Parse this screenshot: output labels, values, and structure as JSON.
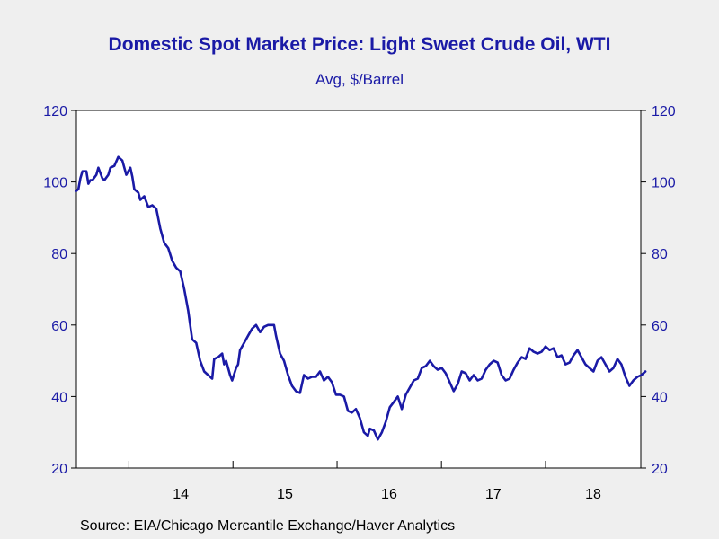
{
  "header": {
    "title": "Domestic Spot Market Price: Light Sweet Crude Oil, WTI",
    "subtitle": "Avg, $/Barrel"
  },
  "footer": {
    "source": "Source:  EIA/Chicago Mercantile Exchange/Haver Analytics"
  },
  "colors": {
    "line": "#1a1aa6",
    "axis": "#000000",
    "background": "#efefef",
    "plot": "#ffffff"
  },
  "chart_data": {
    "type": "line",
    "title": "Domestic Spot Market Price: Light Sweet Crude Oil, WTI",
    "subtitle": "Avg, $/Barrel",
    "xlabel": "",
    "ylabel": "",
    "xlim": [
      "2013-07",
      "2018-12"
    ],
    "ylim": [
      20,
      120
    ],
    "yticks": [
      20,
      40,
      60,
      80,
      100,
      120
    ],
    "xticks": [
      "14",
      "15",
      "16",
      "17",
      "18"
    ],
    "grid": false,
    "legend": "none",
    "series": [
      {
        "values": [
          [
            "2013-07-01",
            97.5
          ],
          [
            "2013-07-08",
            98.0
          ],
          [
            "2013-07-15",
            101.0
          ],
          [
            "2013-07-22",
            103.0
          ],
          [
            "2013-08-05",
            103.0
          ],
          [
            "2013-08-12",
            99.5
          ],
          [
            "2013-08-19",
            100.5
          ],
          [
            "2013-08-26",
            100.5
          ],
          [
            "2013-09-09",
            102.0
          ],
          [
            "2013-09-16",
            104.0
          ],
          [
            "2013-09-30",
            101.0
          ],
          [
            "2013-10-07",
            100.5
          ],
          [
            "2013-10-21",
            102.0
          ],
          [
            "2013-10-28",
            104.0
          ],
          [
            "2013-11-11",
            104.5
          ],
          [
            "2013-11-25",
            107.0
          ],
          [
            "2013-12-09",
            106.0
          ],
          [
            "2013-12-23",
            102.0
          ],
          [
            "2014-01-06",
            104.0
          ],
          [
            "2014-01-13",
            101.5
          ],
          [
            "2014-01-20",
            98.0
          ],
          [
            "2014-02-03",
            97.0
          ],
          [
            "2014-02-10",
            95.0
          ],
          [
            "2014-02-24",
            96.0
          ],
          [
            "2014-03-10",
            93.0
          ],
          [
            "2014-03-24",
            93.5
          ],
          [
            "2014-04-07",
            92.5
          ],
          [
            "2014-04-21",
            87.0
          ],
          [
            "2014-05-05",
            83.0
          ],
          [
            "2014-05-19",
            81.5
          ],
          [
            "2014-06-02",
            78.0
          ],
          [
            "2014-06-16",
            76.0
          ],
          [
            "2014-06-30",
            75.0
          ],
          [
            "2014-07-14",
            70.0
          ],
          [
            "2014-07-28",
            64.0
          ],
          [
            "2014-08-11",
            56.0
          ],
          [
            "2014-08-25",
            55.0
          ],
          [
            "2014-09-08",
            50.0
          ],
          [
            "2014-09-22",
            47.0
          ],
          [
            "2014-10-06",
            46.0
          ],
          [
            "2014-10-20",
            45.0
          ],
          [
            "2014-10-27",
            50.5
          ],
          [
            "2014-11-10",
            51.0
          ],
          [
            "2014-11-24",
            52.0
          ],
          [
            "2014-12-01",
            49.0
          ],
          [
            "2014-12-08",
            50.0
          ],
          [
            "2014-12-22",
            46.0
          ],
          [
            "2014-12-29",
            44.5
          ],
          [
            "2015-01-12",
            48.0
          ],
          [
            "2015-01-19",
            49.0
          ],
          [
            "2015-01-26",
            53.0
          ],
          [
            "2015-02-09",
            55.0
          ],
          [
            "2015-02-23",
            57.0
          ],
          [
            "2015-03-09",
            59.0
          ],
          [
            "2015-03-23",
            60.0
          ],
          [
            "2015-04-06",
            58.0
          ],
          [
            "2015-04-20",
            59.5
          ],
          [
            "2015-05-04",
            60.0
          ],
          [
            "2015-05-25",
            60.0
          ],
          [
            "2015-06-01",
            57.0
          ],
          [
            "2015-06-15",
            52.0
          ],
          [
            "2015-06-29",
            50.0
          ],
          [
            "2015-07-13",
            46.0
          ],
          [
            "2015-07-27",
            43.0
          ],
          [
            "2015-08-10",
            41.5
          ],
          [
            "2015-08-24",
            41.0
          ],
          [
            "2015-09-07",
            46.0
          ],
          [
            "2015-09-21",
            45.0
          ],
          [
            "2015-10-05",
            45.5
          ],
          [
            "2015-10-19",
            45.5
          ],
          [
            "2015-11-02",
            47.0
          ],
          [
            "2015-11-16",
            44.5
          ],
          [
            "2015-11-30",
            45.5
          ],
          [
            "2015-12-14",
            44.0
          ],
          [
            "2015-12-28",
            40.5
          ],
          [
            "2016-01-11",
            40.5
          ],
          [
            "2016-01-25",
            40.0
          ],
          [
            "2016-02-08",
            36.0
          ],
          [
            "2016-02-22",
            35.5
          ],
          [
            "2016-03-07",
            36.5
          ],
          [
            "2016-03-21",
            34.0
          ],
          [
            "2016-04-04",
            30.0
          ],
          [
            "2016-04-18",
            29.0
          ],
          [
            "2016-04-25",
            31.0
          ],
          [
            "2016-05-09",
            30.5
          ],
          [
            "2016-05-23",
            28.0
          ],
          [
            "2016-06-06",
            30.0
          ],
          [
            "2016-06-20",
            33.0
          ],
          [
            "2016-07-04",
            37.0
          ],
          [
            "2016-07-18",
            38.5
          ],
          [
            "2016-08-01",
            40.0
          ],
          [
            "2016-08-15",
            36.5
          ],
          [
            "2016-08-29",
            40.5
          ],
          [
            "2016-09-12",
            42.5
          ],
          [
            "2016-09-26",
            44.5
          ],
          [
            "2016-10-10",
            45.0
          ],
          [
            "2016-10-24",
            48.0
          ],
          [
            "2016-11-07",
            48.5
          ],
          [
            "2016-11-21",
            50.0
          ],
          [
            "2016-12-05",
            48.5
          ],
          [
            "2016-12-19",
            47.5
          ],
          [
            "2017-01-02",
            48.0
          ],
          [
            "2017-01-16",
            46.5
          ],
          [
            "2017-01-30",
            44.0
          ],
          [
            "2017-02-13",
            41.5
          ],
          [
            "2017-02-27",
            43.5
          ],
          [
            "2017-03-13",
            47.0
          ],
          [
            "2017-03-27",
            46.5
          ],
          [
            "2017-04-10",
            44.5
          ],
          [
            "2017-04-24",
            46.0
          ],
          [
            "2017-05-08",
            44.5
          ],
          [
            "2017-05-22",
            45.0
          ],
          [
            "2017-06-05",
            47.5
          ],
          [
            "2017-06-19",
            49.0
          ],
          [
            "2017-07-03",
            50.0
          ],
          [
            "2017-07-17",
            49.5
          ],
          [
            "2017-07-31",
            46.0
          ],
          [
            "2017-08-14",
            44.5
          ],
          [
            "2017-08-28",
            45.0
          ],
          [
            "2017-09-11",
            47.5
          ],
          [
            "2017-09-25",
            49.5
          ],
          [
            "2017-10-09",
            51.0
          ],
          [
            "2017-10-23",
            50.5
          ],
          [
            "2017-11-06",
            53.5
          ],
          [
            "2017-11-20",
            52.5
          ],
          [
            "2017-12-04",
            52.0
          ],
          [
            "2017-12-18",
            52.5
          ],
          [
            "2018-01-01",
            54.0
          ],
          [
            "2018-01-15",
            53.0
          ],
          [
            "2018-01-29",
            53.5
          ],
          [
            "2018-02-12",
            51.0
          ],
          [
            "2018-02-26",
            51.5
          ],
          [
            "2018-03-12",
            49.0
          ],
          [
            "2018-03-26",
            49.5
          ],
          [
            "2018-04-09",
            51.5
          ],
          [
            "2018-04-23",
            53.0
          ],
          [
            "2018-05-07",
            51.0
          ],
          [
            "2018-05-21",
            49.0
          ],
          [
            "2018-06-04",
            48.0
          ],
          [
            "2018-06-18",
            47.0
          ],
          [
            "2018-07-02",
            50.0
          ],
          [
            "2018-07-16",
            51.0
          ],
          [
            "2018-07-30",
            49.0
          ],
          [
            "2018-08-13",
            47.0
          ],
          [
            "2018-08-27",
            48.0
          ],
          [
            "2018-09-10",
            50.5
          ],
          [
            "2018-09-24",
            49.0
          ],
          [
            "2018-10-08",
            45.5
          ],
          [
            "2018-10-22",
            43.0
          ],
          [
            "2018-11-05",
            44.5
          ],
          [
            "2018-11-19",
            45.5
          ],
          [
            "2018-12-03",
            46.0
          ],
          [
            "2018-12-17",
            47.0
          ]
        ]
      }
    ]
  }
}
